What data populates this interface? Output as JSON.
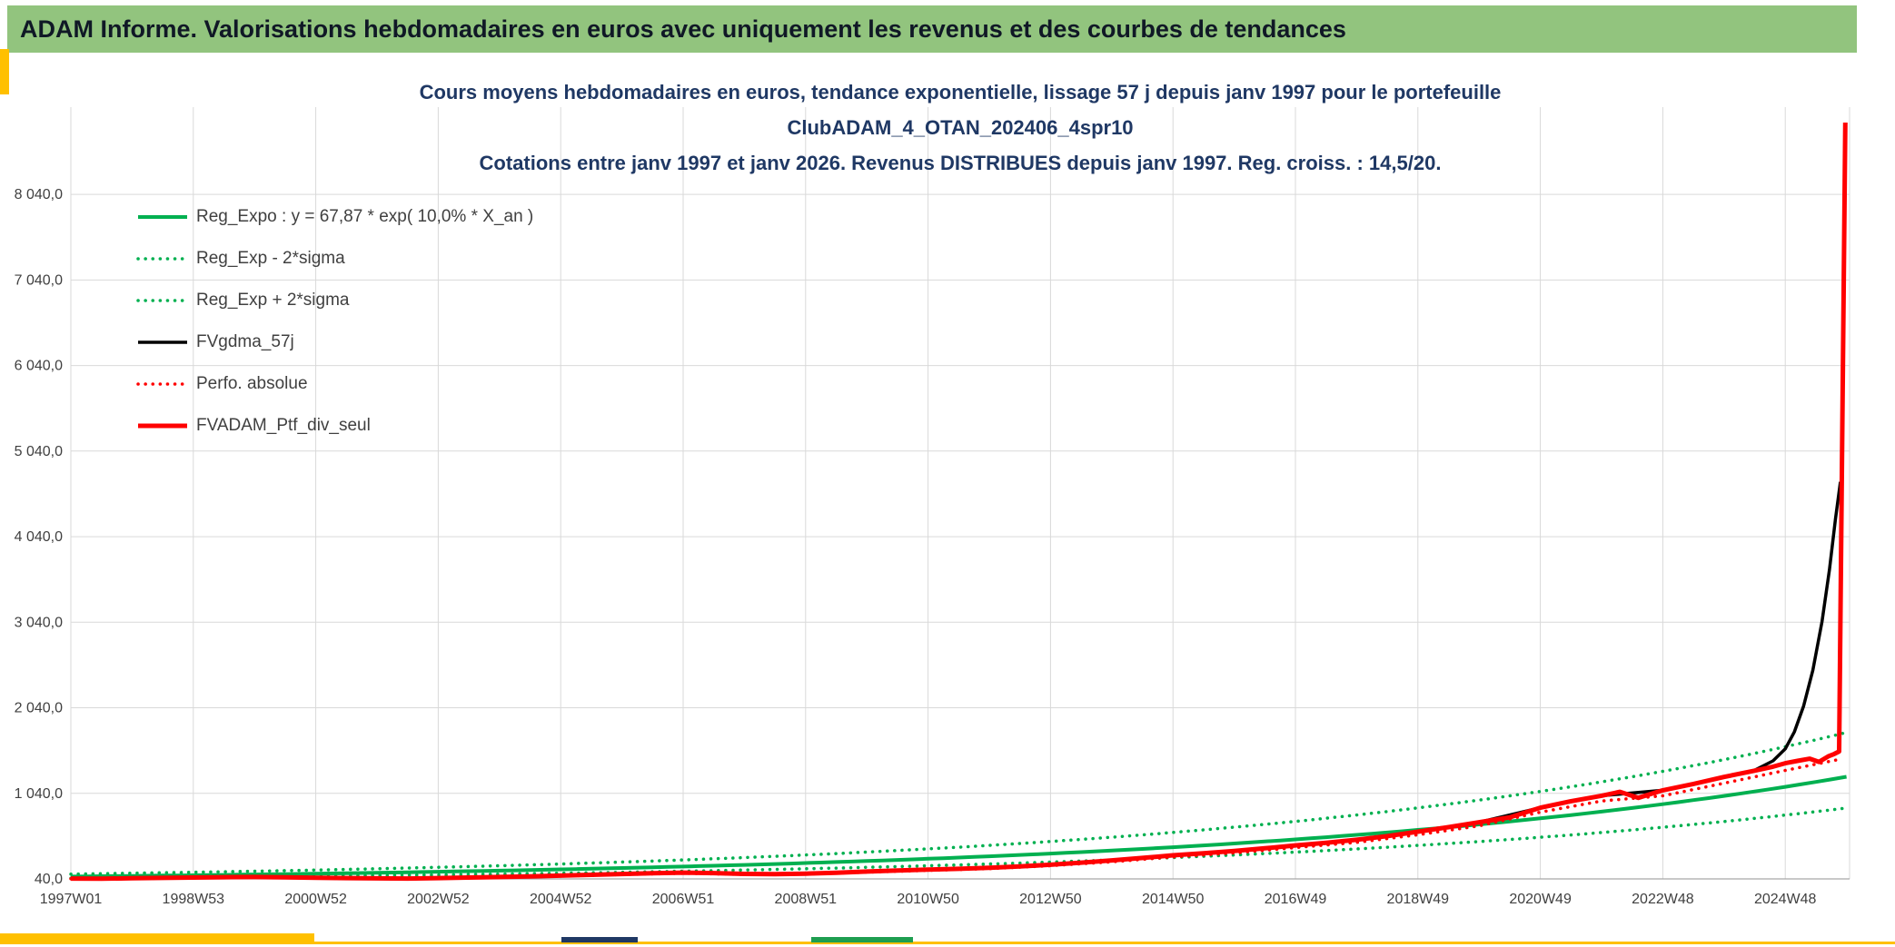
{
  "banner": {
    "text": "ADAM Informe. Valorisations hebdomadaires en euros avec uniquement les revenus et des courbes de tendances"
  },
  "colors": {
    "banner_bg": "#92C47E",
    "banner_text": "#101826",
    "title": "#1F3864",
    "axis_text": "#404040",
    "grid": "#D9D9D9",
    "axis_line": "#A6A6A6",
    "accent_yellow": "#FFC000",
    "tab_green": "#1E9E50",
    "tab_navy": "#1F3864",
    "page_border": "#808080"
  },
  "chart_data": {
    "type": "line",
    "title_lines": [
      "Cours moyens hebdomadaires en euros, tendance exponentielle, lissage 57 j depuis janv 1997 pour le portefeuille",
      "ClubADAM_4_OTAN_202406_4spr10",
      "Cotations entre janv 1997 et janv 2026. Revenus DISTRIBUES depuis janv 1997. Reg. croiss. : 14,5/20."
    ],
    "x_range": [
      1997,
      2026.05
    ],
    "y_range": [
      40,
      9060
    ],
    "grid": true,
    "legend_position": "top-left",
    "x_ticks": [
      {
        "year": 1997,
        "label": "1997W01"
      },
      {
        "year": 1999,
        "label": "1998W53"
      },
      {
        "year": 2001,
        "label": "2000W52"
      },
      {
        "year": 2003,
        "label": "2002W52"
      },
      {
        "year": 2005,
        "label": "2004W52"
      },
      {
        "year": 2007,
        "label": "2006W51"
      },
      {
        "year": 2009,
        "label": "2008W51"
      },
      {
        "year": 2011,
        "label": "2010W50"
      },
      {
        "year": 2013,
        "label": "2012W50"
      },
      {
        "year": 2015,
        "label": "2014W50"
      },
      {
        "year": 2017,
        "label": "2016W49"
      },
      {
        "year": 2019,
        "label": "2018W49"
      },
      {
        "year": 2021,
        "label": "2020W49"
      },
      {
        "year": 2023,
        "label": "2022W48"
      },
      {
        "year": 2025,
        "label": "2024W48"
      }
    ],
    "y_ticks": [
      {
        "value": 40,
        "label": "40,0"
      },
      {
        "value": 1040,
        "label": "1 040,0"
      },
      {
        "value": 2040,
        "label": "2 040,0"
      },
      {
        "value": 3040,
        "label": "3 040,0"
      },
      {
        "value": 4040,
        "label": "4 040,0"
      },
      {
        "value": 5040,
        "label": "5 040,0"
      },
      {
        "value": 6040,
        "label": "6 040,0"
      },
      {
        "value": 7040,
        "label": "7 040,0"
      },
      {
        "value": 8040,
        "label": "8 040,0"
      }
    ],
    "series": [
      {
        "name": "Reg_Expo : y = 67,87 * exp( 10,0% *  X_an )",
        "color": "#00B050",
        "style": "solid",
        "width": 4,
        "gen": {
          "kind": "exp",
          "a": 67.87,
          "r": 0.1,
          "x0": 1997,
          "factor": 1.0,
          "from": 1997,
          "to": 2026.0,
          "step": 0.25
        }
      },
      {
        "name": "Reg_Exp - 2*sigma",
        "color": "#00B050",
        "style": "dotted",
        "width": 3.5,
        "gen": {
          "kind": "exp",
          "a": 67.87,
          "r": 0.1,
          "x0": 1997,
          "factor": 0.704,
          "from": 1997,
          "to": 2026.0,
          "step": 0.25
        }
      },
      {
        "name": "Reg_Exp + 2*sigma",
        "color": "#00B050",
        "style": "dotted",
        "width": 3.5,
        "gen": {
          "kind": "exp",
          "a": 67.87,
          "r": 0.1,
          "x0": 1997,
          "factor": 1.42,
          "from": 1997,
          "to": 2026.0,
          "step": 0.25
        }
      },
      {
        "name": "FVgdma_57j",
        "color": "#000000",
        "style": "solid",
        "width": 3.5,
        "points": [
          [
            1997,
            45
          ],
          [
            1998,
            48
          ],
          [
            1999,
            56
          ],
          [
            2000,
            60
          ],
          [
            2001,
            54
          ],
          [
            2002,
            46
          ],
          [
            2003,
            50
          ],
          [
            2004,
            62
          ],
          [
            2005,
            78
          ],
          [
            2006,
            97
          ],
          [
            2007,
            112
          ],
          [
            2008,
            99
          ],
          [
            2009,
            103
          ],
          [
            2010,
            126
          ],
          [
            2011,
            149
          ],
          [
            2012,
            170
          ],
          [
            2013,
            206
          ],
          [
            2014,
            256
          ],
          [
            2015,
            316
          ],
          [
            2016,
            366
          ],
          [
            2017,
            432
          ],
          [
            2018,
            497
          ],
          [
            2019,
            592
          ],
          [
            2020,
            702
          ],
          [
            2021,
            872
          ],
          [
            2022,
            1012
          ],
          [
            2023,
            1076
          ],
          [
            2023.5,
            1150
          ],
          [
            2024,
            1232
          ],
          [
            2024.5,
            1310
          ],
          [
            2024.8,
            1420
          ],
          [
            2025,
            1560
          ],
          [
            2025.15,
            1760
          ],
          [
            2025.3,
            2060
          ],
          [
            2025.45,
            2480
          ],
          [
            2025.6,
            3050
          ],
          [
            2025.72,
            3650
          ],
          [
            2025.82,
            4250
          ],
          [
            2025.9,
            4680
          ]
        ]
      },
      {
        "name": "Perfo. absolue",
        "color": "#FF0000",
        "style": "dotted",
        "width": 3.5,
        "points": [
          [
            1997,
            41
          ],
          [
            1998,
            44
          ],
          [
            1999,
            52
          ],
          [
            2000,
            58
          ],
          [
            2001,
            50
          ],
          [
            2002,
            43
          ],
          [
            2003,
            47
          ],
          [
            2004,
            58
          ],
          [
            2005,
            73
          ],
          [
            2006,
            91
          ],
          [
            2007,
            106
          ],
          [
            2008,
            92
          ],
          [
            2009,
            96
          ],
          [
            2010,
            118
          ],
          [
            2011,
            140
          ],
          [
            2012,
            160
          ],
          [
            2013,
            194
          ],
          [
            2014,
            240
          ],
          [
            2015,
            297
          ],
          [
            2016,
            344
          ],
          [
            2017,
            406
          ],
          [
            2018,
            467
          ],
          [
            2019,
            556
          ],
          [
            2020,
            660
          ],
          [
            2021,
            820
          ],
          [
            2022,
            951
          ],
          [
            2023,
            1011
          ],
          [
            2024,
            1158
          ],
          [
            2025,
            1308
          ],
          [
            2025.9,
            1440
          ]
        ]
      },
      {
        "name": "FVADAM_Ptf_div_seul",
        "color": "#FF0000",
        "style": "solid",
        "width": 5,
        "points": [
          [
            1997,
            44
          ],
          [
            1997.5,
            42
          ],
          [
            1998,
            47
          ],
          [
            1998.5,
            52
          ],
          [
            1999,
            56
          ],
          [
            1999.5,
            60
          ],
          [
            2000,
            62
          ],
          [
            2000.5,
            58
          ],
          [
            2001,
            54
          ],
          [
            2001.5,
            50
          ],
          [
            2002,
            46
          ],
          [
            2002.5,
            44
          ],
          [
            2003,
            50
          ],
          [
            2003.5,
            56
          ],
          [
            2004,
            62
          ],
          [
            2004.5,
            70
          ],
          [
            2005,
            78
          ],
          [
            2005.5,
            88
          ],
          [
            2006,
            97
          ],
          [
            2006.5,
            106
          ],
          [
            2007,
            113
          ],
          [
            2007.5,
            108
          ],
          [
            2008,
            98
          ],
          [
            2008.5,
            95
          ],
          [
            2009,
            102
          ],
          [
            2009.5,
            112
          ],
          [
            2010,
            126
          ],
          [
            2010.5,
            138
          ],
          [
            2011,
            149
          ],
          [
            2011.5,
            158
          ],
          [
            2012,
            170
          ],
          [
            2012.5,
            186
          ],
          [
            2013,
            206
          ],
          [
            2013.5,
            230
          ],
          [
            2014,
            256
          ],
          [
            2014.5,
            285
          ],
          [
            2015,
            316
          ],
          [
            2015.5,
            340
          ],
          [
            2016,
            366
          ],
          [
            2016.5,
            398
          ],
          [
            2017,
            432
          ],
          [
            2017.5,
            462
          ],
          [
            2018,
            497
          ],
          [
            2018.5,
            540
          ],
          [
            2019,
            592
          ],
          [
            2019.5,
            645
          ],
          [
            2020,
            702
          ],
          [
            2020.5,
            760
          ],
          [
            2021,
            872
          ],
          [
            2021.5,
            948
          ],
          [
            2022,
            1012
          ],
          [
            2022.3,
            1058
          ],
          [
            2022.6,
            988
          ],
          [
            2023,
            1076
          ],
          [
            2023.5,
            1150
          ],
          [
            2024,
            1232
          ],
          [
            2024.5,
            1305
          ],
          [
            2024.8,
            1352
          ],
          [
            2025,
            1392
          ],
          [
            2025.2,
            1420
          ],
          [
            2025.4,
            1445
          ],
          [
            2025.55,
            1408
          ],
          [
            2025.7,
            1472
          ],
          [
            2025.8,
            1500
          ],
          [
            2025.88,
            1530
          ],
          [
            2025.98,
            8880
          ]
        ]
      }
    ]
  }
}
